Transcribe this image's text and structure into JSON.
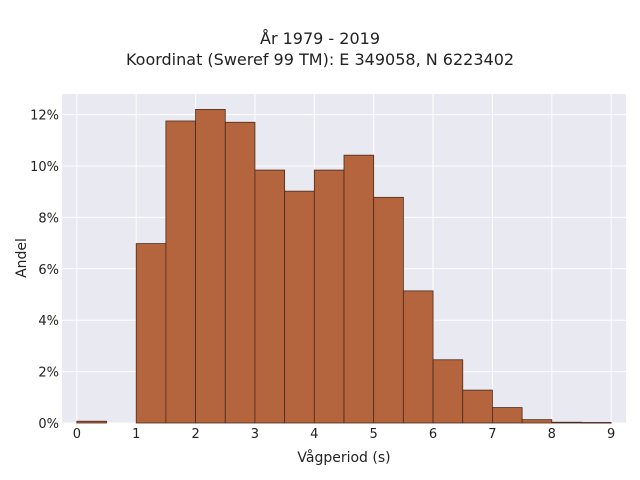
{
  "chart_data": {
    "type": "bar",
    "title": "År 1979 - 2019",
    "subtitle": "Koordinat (Sweref 99 TM): E 349058, N 6223402",
    "xlabel": "Vågperiod (s)",
    "ylabel": "Andel",
    "bin_width": 0.5,
    "bins": [
      {
        "x0": 0.0,
        "x1": 0.5,
        "value": 0.07
      },
      {
        "x0": 0.5,
        "x1": 1.0,
        "value": 0.0
      },
      {
        "x0": 1.0,
        "x1": 1.5,
        "value": 6.98
      },
      {
        "x0": 1.5,
        "x1": 2.0,
        "value": 11.75
      },
      {
        "x0": 2.0,
        "x1": 2.5,
        "value": 12.2
      },
      {
        "x0": 2.5,
        "x1": 3.0,
        "value": 11.7
      },
      {
        "x0": 3.0,
        "x1": 3.5,
        "value": 9.84
      },
      {
        "x0": 3.5,
        "x1": 4.0,
        "value": 9.02
      },
      {
        "x0": 4.0,
        "x1": 4.5,
        "value": 9.84
      },
      {
        "x0": 4.5,
        "x1": 5.0,
        "value": 10.42
      },
      {
        "x0": 5.0,
        "x1": 5.5,
        "value": 8.78
      },
      {
        "x0": 5.5,
        "x1": 6.0,
        "value": 5.14
      },
      {
        "x0": 6.0,
        "x1": 6.5,
        "value": 2.46
      },
      {
        "x0": 6.5,
        "x1": 7.0,
        "value": 1.28
      },
      {
        "x0": 7.0,
        "x1": 7.5,
        "value": 0.6
      },
      {
        "x0": 7.5,
        "x1": 8.0,
        "value": 0.13
      },
      {
        "x0": 8.0,
        "x1": 8.5,
        "value": 0.03
      },
      {
        "x0": 8.5,
        "x1": 9.0,
        "value": 0.02
      }
    ],
    "xlim": [
      -0.25,
      9.25
    ],
    "ylim": [
      0,
      12.8
    ],
    "xticks": [
      0,
      1,
      2,
      3,
      4,
      5,
      6,
      7,
      8,
      9
    ],
    "xtick_labels": [
      "0",
      "1",
      "2",
      "3",
      "4",
      "5",
      "6",
      "7",
      "8",
      "9"
    ],
    "yticks": [
      0,
      2,
      4,
      6,
      8,
      10,
      12
    ],
    "ytick_labels": [
      "0%",
      "2%",
      "4%",
      "6%",
      "8%",
      "10%",
      "12%"
    ],
    "grid": true,
    "colors": {
      "bar_fill": "#b5653d",
      "bar_edge": "#4a2a1a",
      "plot_background": "#e9e9f1",
      "grid": "#ffffff"
    }
  }
}
